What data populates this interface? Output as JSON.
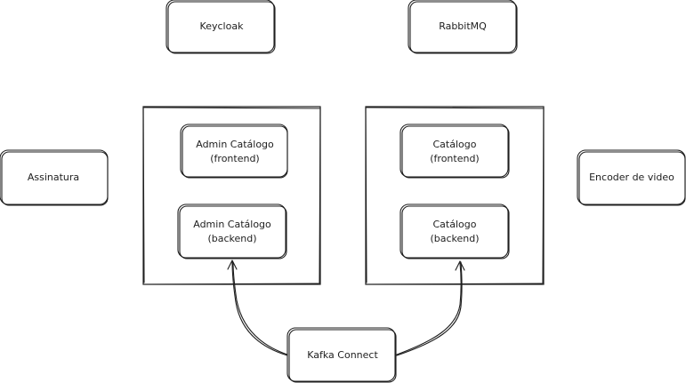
{
  "nodes": {
    "keycloak": "Keycloak",
    "rabbitmq": "RabbitMQ",
    "assinatura": "Assinatura",
    "encoder": "Encoder de video",
    "admin_frontend": [
      "Admin Catálogo",
      "(frontend)"
    ],
    "admin_backend": [
      "Admin Catálogo",
      "(backend)"
    ],
    "catalogo_frontend": [
      "Catálogo",
      "(frontend)"
    ],
    "catalogo_backend": [
      "Catálogo",
      "(backend)"
    ],
    "kafka_connect": "Kafka Connect"
  },
  "colors": {
    "stroke": "#1e1e1e",
    "background": "#ffffff"
  }
}
